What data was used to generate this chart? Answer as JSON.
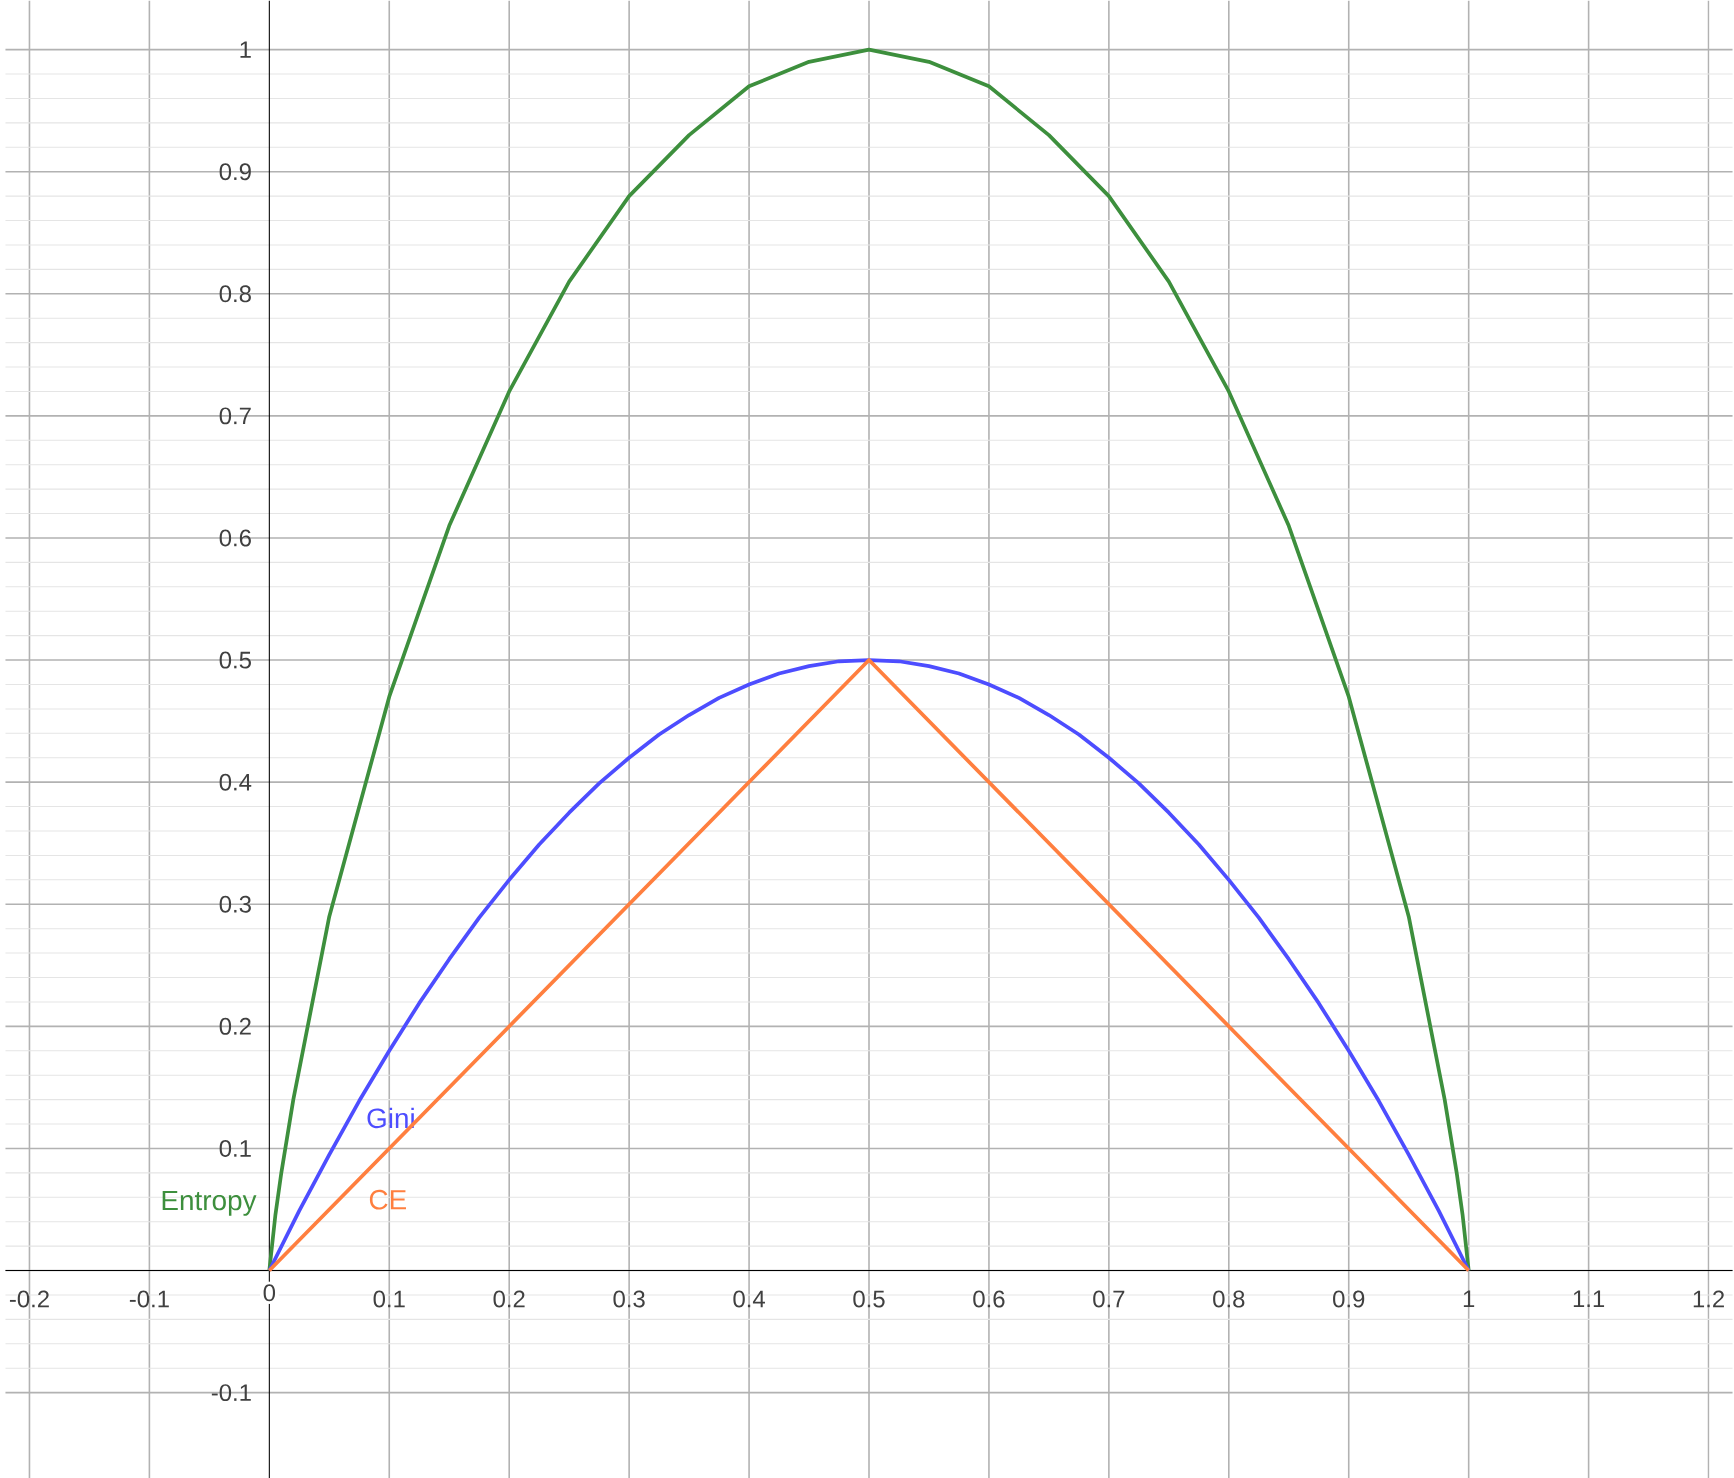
{
  "chart_data": {
    "type": "line",
    "xlim": [
      -0.22,
      1.22
    ],
    "ylim": [
      -0.17,
      1.04
    ],
    "xticks": [
      -0.2,
      -0.1,
      0,
      0.1,
      0.2,
      0.3,
      0.4,
      0.5,
      0.6,
      0.7,
      0.8,
      0.9,
      1,
      1.1,
      1.2
    ],
    "yticks": [
      -0.1,
      {
        "value": 0,
        "label": null
      },
      0.1,
      0.2,
      0.3,
      0.4,
      0.5,
      0.6,
      0.7,
      0.8,
      0.9,
      1
    ],
    "grid": true,
    "marker": "none",
    "line_style": "solid",
    "series": [
      {
        "name": "Entropy",
        "color": "#3d8f3d",
        "x": [
          0,
          0.005,
          0.01,
          0.02,
          0.03,
          0.05,
          0.075,
          0.1,
          0.125,
          0.15,
          0.2,
          0.25,
          0.3,
          0.35,
          0.4,
          0.45,
          0.5,
          0.55,
          0.6,
          0.65,
          0.7,
          0.75,
          0.8,
          0.85,
          0.875,
          0.9,
          0.925,
          0.95,
          0.97,
          0.98,
          0.99,
          0.995,
          1
        ],
        "values": [
          0,
          0.045,
          0.08,
          0.14,
          0.19,
          0.29,
          0.38,
          0.47,
          0.54,
          0.61,
          0.72,
          0.81,
          0.88,
          0.93,
          0.97,
          0.99,
          1,
          0.99,
          0.97,
          0.93,
          0.88,
          0.81,
          0.72,
          0.61,
          0.54,
          0.47,
          0.38,
          0.29,
          0.19,
          0.14,
          0.08,
          0.045,
          0
        ]
      },
      {
        "name": "Gini",
        "color": "#4d4dff",
        "x": [
          0,
          0.025,
          0.05,
          0.075,
          0.1,
          0.125,
          0.15,
          0.175,
          0.2,
          0.225,
          0.25,
          0.275,
          0.3,
          0.325,
          0.35,
          0.375,
          0.4,
          0.425,
          0.45,
          0.475,
          0.5,
          0.525,
          0.55,
          0.575,
          0.6,
          0.625,
          0.65,
          0.675,
          0.7,
          0.725,
          0.75,
          0.775,
          0.8,
          0.825,
          0.85,
          0.875,
          0.9,
          0.925,
          0.95,
          0.975,
          1
        ],
        "values": [
          0,
          0.049,
          0.095,
          0.139,
          0.18,
          0.219,
          0.255,
          0.289,
          0.32,
          0.349,
          0.375,
          0.399,
          0.42,
          0.439,
          0.455,
          0.469,
          0.48,
          0.489,
          0.495,
          0.499,
          0.5,
          0.499,
          0.495,
          0.489,
          0.48,
          0.469,
          0.455,
          0.439,
          0.42,
          0.399,
          0.375,
          0.349,
          0.32,
          0.289,
          0.255,
          0.219,
          0.18,
          0.139,
          0.095,
          0.049,
          0
        ]
      },
      {
        "name": "CE",
        "color": "#ff7f3f",
        "x": [
          0,
          0.5,
          1
        ],
        "values": [
          0,
          0.5,
          0
        ]
      }
    ]
  }
}
